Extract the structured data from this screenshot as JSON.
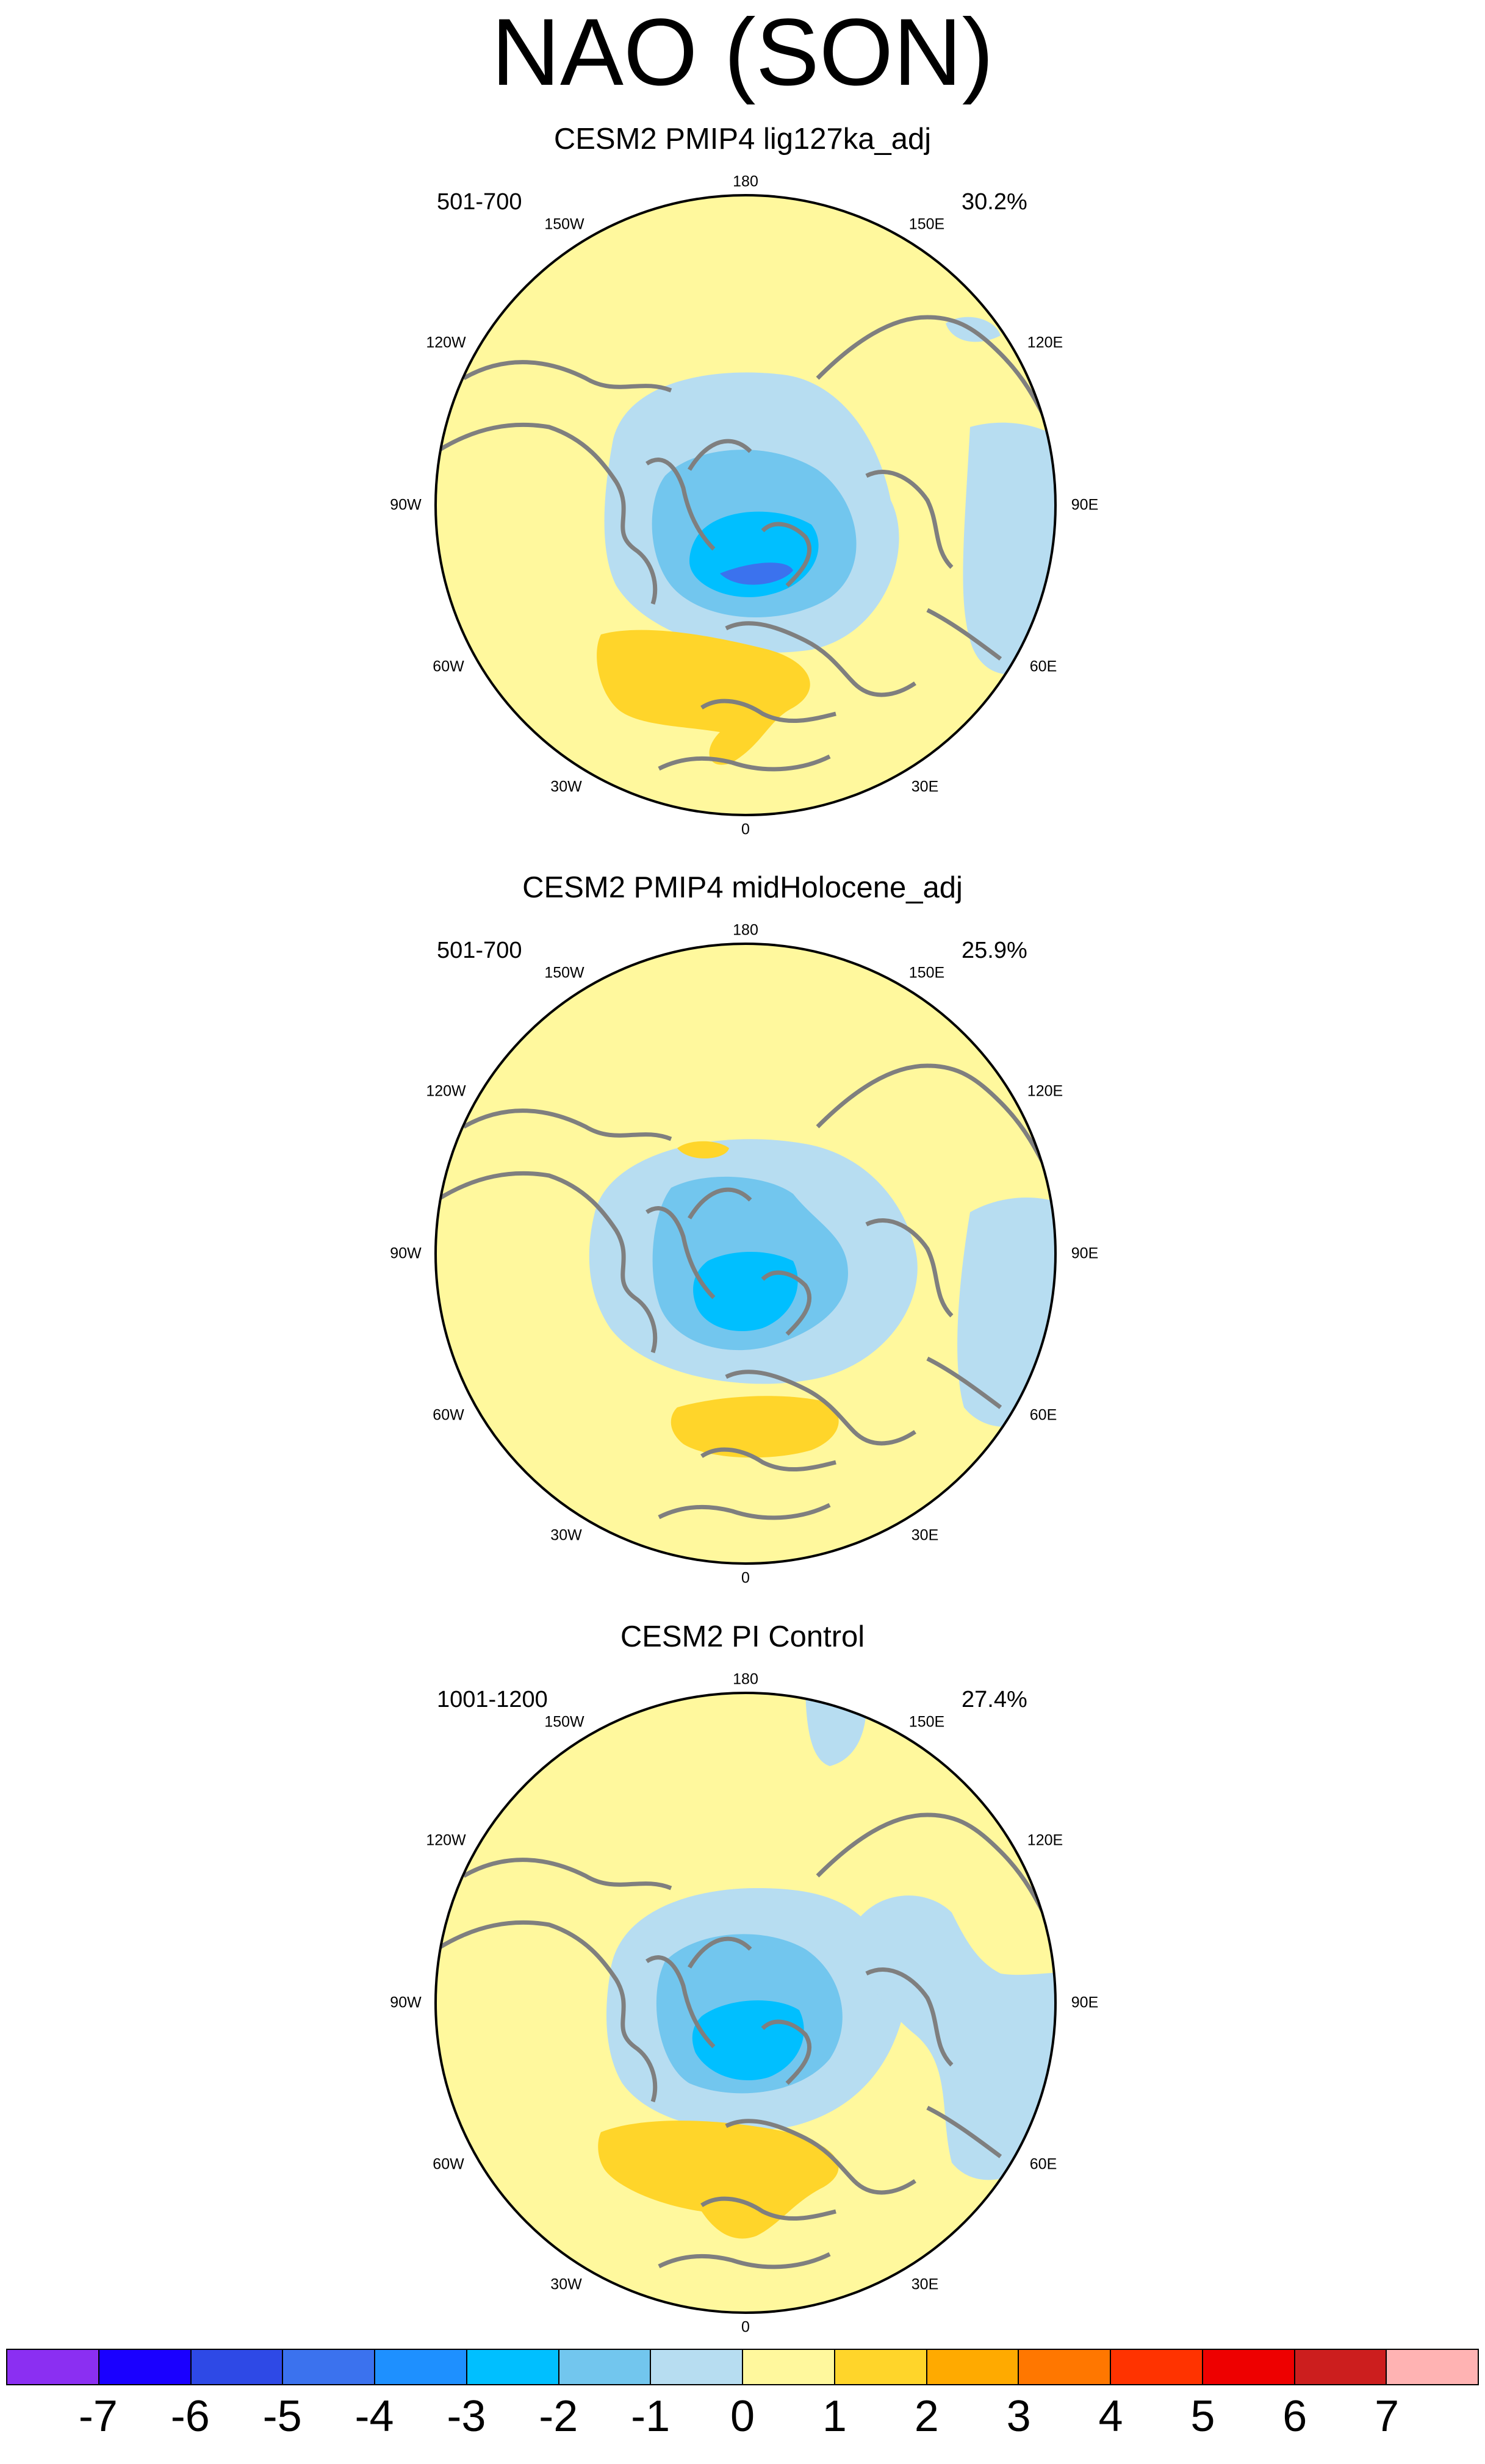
{
  "figure": {
    "title": "NAO (SON)"
  },
  "chart_data": {
    "type": "polar-stereographic contour map",
    "variable": "NAO (SON)",
    "panels": [
      {
        "title": "CESM2 PMIP4 lig127ka_adj",
        "years": "501-700",
        "variance_explained": "30.2%"
      },
      {
        "title": "CESM2 PMIP4 midHolocene_adj",
        "years": "501-700",
        "variance_explained": "25.9%"
      },
      {
        "title": "CESM2 PI Control",
        "years": "1001-1200",
        "variance_explained": "27.4%"
      }
    ],
    "longitude_labels": {
      "top": "180",
      "top_left": "150W",
      "top_right": "150E",
      "upper_left": "120W",
      "upper_right": "120E",
      "left": "90W",
      "right": "90E",
      "lower_left": "60W",
      "lower_right": "60E",
      "bottom_left": "30W",
      "bottom_right": "30E",
      "bottom": "0"
    },
    "colorbar": {
      "labels": [
        "-7",
        "-6",
        "-5",
        "-4",
        "-3",
        "-2",
        "-1",
        "0",
        "1",
        "2",
        "3",
        "4",
        "5",
        "6",
        "7"
      ],
      "colors": [
        "#8b2ff2",
        "#1a00ff",
        "#2e49e6",
        "#3b72ee",
        "#1e90ff",
        "#00bfff",
        "#72c6ee",
        "#b7ddf1",
        "#fff89d",
        "#ffd52a",
        "#ffaa00",
        "#ff7700",
        "#ff3300",
        "#ee0000",
        "#cc1e1e",
        "#ffb3b3"
      ]
    }
  },
  "colors": {
    "coastline": "#7f7f7f",
    "ocean_base": "#fff89d"
  }
}
